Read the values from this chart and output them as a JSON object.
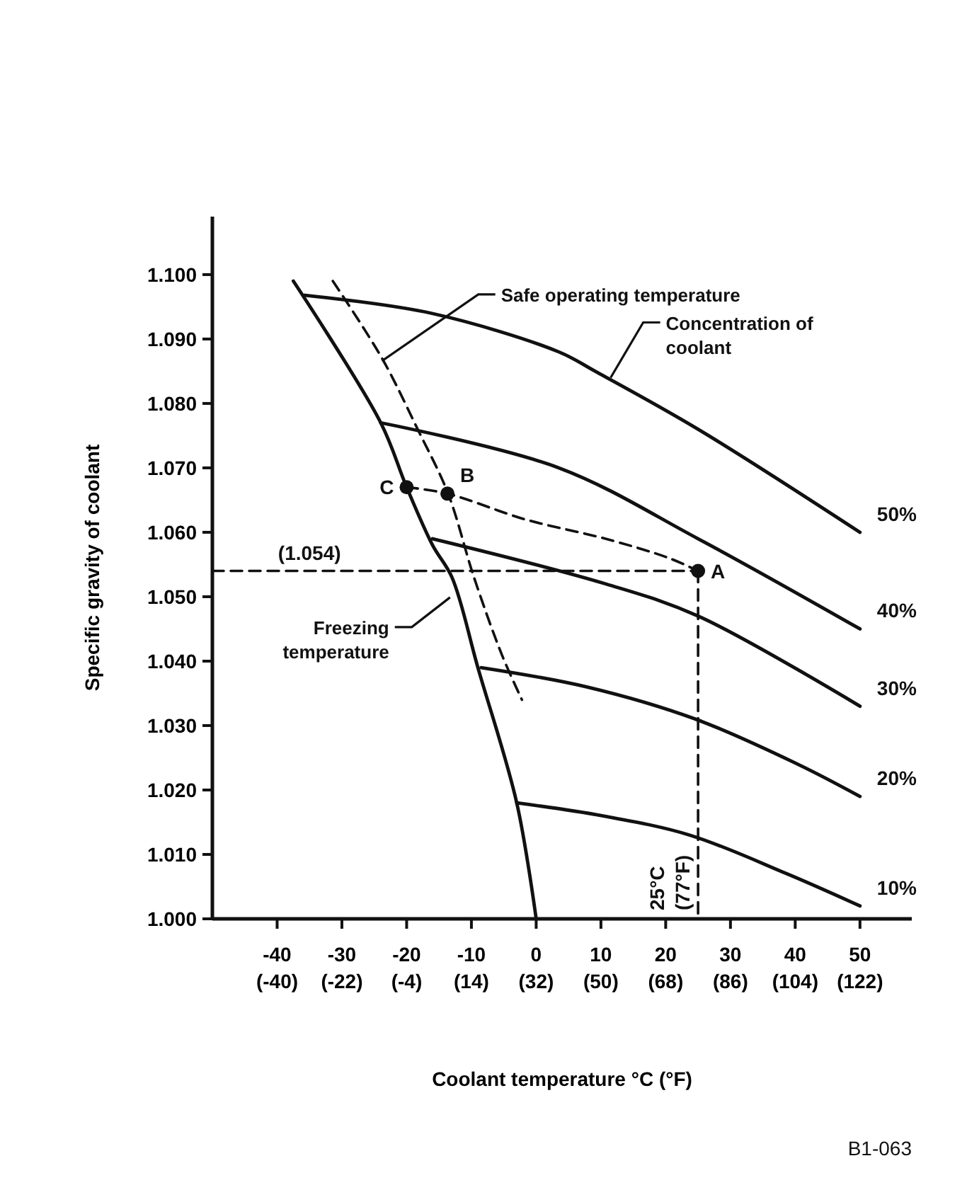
{
  "chart_data": {
    "type": "line",
    "xlabel": "Coolant temperature °C (°F)",
    "ylabel": "Specific gravity of coolant",
    "xlim": [
      -50,
      58
    ],
    "ylim": [
      1.0,
      1.109
    ],
    "xticks": [
      -40,
      -30,
      -20,
      -10,
      0,
      10,
      20,
      30,
      40,
      50
    ],
    "x2lim": [
      -58,
      136.4
    ],
    "x2ticks": [
      {
        "value": -40,
        "label": "(-40)"
      },
      {
        "value": -22,
        "label": "(-22)"
      },
      {
        "value": -4,
        "label": "(-4)"
      },
      {
        "value": 14,
        "label": "(14)"
      },
      {
        "value": 32,
        "label": "(32)"
      },
      {
        "value": 50,
        "label": "(50)"
      },
      {
        "value": 68,
        "label": "(68)"
      },
      {
        "value": 86,
        "label": "(86)"
      },
      {
        "value": 104,
        "label": "(104)"
      },
      {
        "value": 122,
        "label": "(122)"
      }
    ],
    "yticks": [
      {
        "value": 1.0,
        "label": "1.000"
      },
      {
        "value": 1.01,
        "label": "1.010"
      },
      {
        "value": 1.02,
        "label": "1.020"
      },
      {
        "value": 1.03,
        "label": "1.030"
      },
      {
        "value": 1.04,
        "label": "1.040"
      },
      {
        "value": 1.05,
        "label": "1.050"
      },
      {
        "value": 1.06,
        "label": "1.060"
      },
      {
        "value": 1.07,
        "label": "1.070"
      },
      {
        "value": 1.08,
        "label": "1.080"
      },
      {
        "value": 1.09,
        "label": "1.090"
      },
      {
        "value": 1.1,
        "label": "1.100"
      }
    ],
    "grid": false,
    "marker": "none",
    "series": [
      {
        "name": "50%",
        "color": "#111111",
        "x": [
          -35.7,
          -16.2,
          3.5,
          9.1,
          25,
          50
        ],
        "values": [
          1.0968,
          1.094,
          1.088,
          1.085,
          1.076,
          1.06
        ]
      },
      {
        "name": "40%",
        "color": "#111111",
        "x": [
          -24,
          3.5,
          25,
          50
        ],
        "values": [
          1.077,
          1.07,
          1.059,
          1.045
        ]
      },
      {
        "name": "30%",
        "color": "#111111",
        "x": [
          -16,
          10.7,
          25,
          50
        ],
        "values": [
          1.059,
          1.052,
          1.047,
          1.033
        ]
      },
      {
        "name": "20%",
        "color": "#111111",
        "x": [
          -8.5,
          7.8,
          24.6,
          40.4,
          50
        ],
        "values": [
          1.039,
          1.036,
          1.031,
          1.024,
          1.019
        ]
      },
      {
        "name": "10%",
        "color": "#111111",
        "x": [
          -3,
          10.2,
          23.7,
          38.7,
          50
        ],
        "values": [
          1.018,
          1.016,
          1.013,
          1.007,
          1.002
        ]
      },
      {
        "color": "#111111",
        "x": [
          -37.5,
          -24,
          -20,
          -16,
          -13,
          -9,
          -3,
          0
        ],
        "values": [
          1.099,
          1.077,
          1.067,
          1.058,
          1.053,
          1.039,
          1.018,
          1.0
        ]
      },
      {
        "color": "#111111",
        "line_style": "dashed",
        "x": [
          -31.4,
          -23.8,
          -18.3,
          -13.6,
          -9.6,
          -5.3,
          -2.2
        ],
        "values": [
          1.099,
          1.087,
          1.076,
          1.066,
          1.053,
          1.041,
          1.034
        ]
      },
      {
        "color": "#111111",
        "line_style": "dashed",
        "x": [
          -20,
          -13.7,
          -1.7,
          10.7,
          20.5,
          25
        ],
        "values": [
          1.067,
          1.066,
          1.062,
          1.059,
          1.056,
          1.054
        ]
      },
      {
        "color": "#111111",
        "line_style": "dashed",
        "x": [
          -50,
          25
        ],
        "values": [
          1.054,
          1.054
        ]
      },
      {
        "color": "#111111",
        "line_style": "dashed",
        "x": [
          25,
          25
        ],
        "values": [
          1.054,
          1.0
        ]
      },
      {
        "type": "scatter",
        "color": "#111111",
        "marker": "circle",
        "x": [
          25,
          -13.7,
          -20
        ],
        "values": [
          1.054,
          1.066,
          1.067
        ]
      }
    ],
    "annotations": [
      {
        "text": "Safe operating temperature",
        "x": -23.8,
        "y": 1.0866
      },
      {
        "text": "Concentration of\ncoolant",
        "x": 11.5,
        "y": 1.084
      },
      {
        "text": "Freezing\ntemperature",
        "x": -13.3,
        "y": 1.0499
      },
      {
        "text": "(1.054)",
        "x": -35,
        "y": 1.054
      },
      {
        "text": "25°C\n(77°F)",
        "x": 25,
        "y": 1.0
      },
      {
        "text": "A",
        "x": 25,
        "y": 1.054
      },
      {
        "text": "B",
        "x": -13.7,
        "y": 1.066
      },
      {
        "text": "C",
        "x": -20,
        "y": 1.067
      },
      "B1-063"
    ]
  }
}
